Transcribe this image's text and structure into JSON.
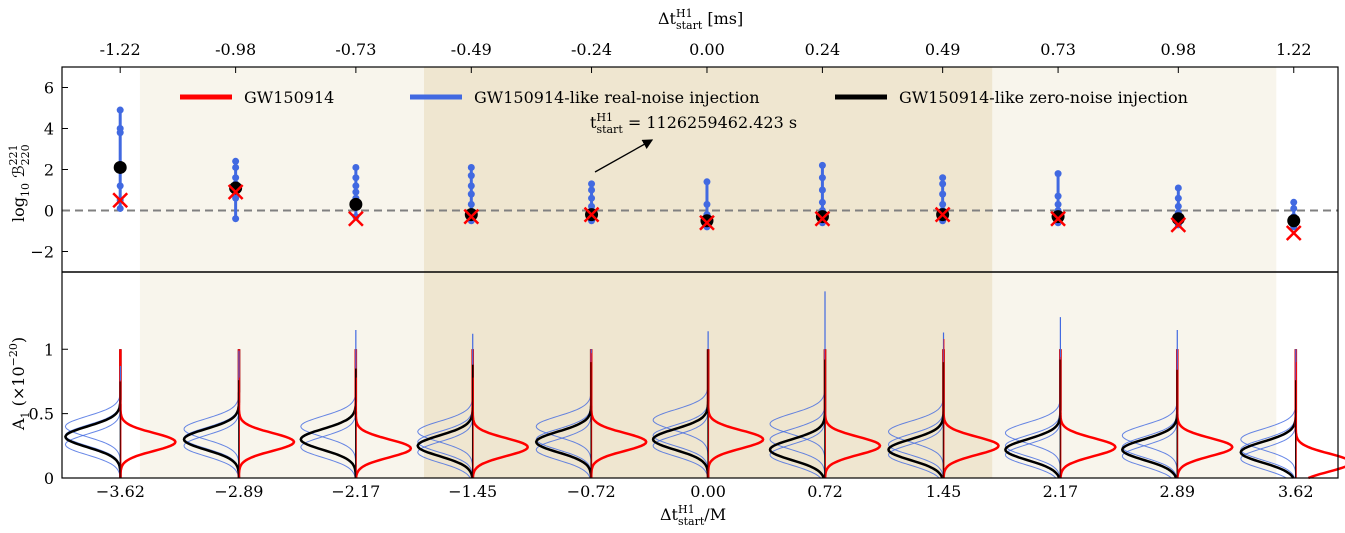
{
  "chart_data": [
    {
      "type": "errorbar",
      "x_label": [
        "Δt",
        "H1",
        "start",
        " [ms]"
      ],
      "y_label": [
        "log",
        "10",
        " ℬ",
        "221",
        "220"
      ],
      "x": [
        -1.22,
        -0.98,
        -0.73,
        -0.49,
        -0.24,
        0,
        0.24,
        0.49,
        0.73,
        0.98,
        1.22
      ],
      "xlim": [
        -1.341,
        1.312
      ],
      "xticks": [
        -1.22,
        -0.98,
        -0.73,
        -0.49,
        -0.24,
        {
          "value": 0,
          "label": "0.00"
        },
        0.24,
        0.49,
        0.73,
        0.98,
        1.22
      ],
      "ylim": [
        -3,
        7
      ],
      "yticks": [
        {
          "value": -2,
          "label": "−2"
        },
        0,
        2,
        4,
        6
      ],
      "hline": 0,
      "annotation": [
        "t",
        "H1",
        "start",
        " = 1126259462.423 s"
      ],
      "series": [
        {
          "name": "GW150914",
          "color": "#ff0000",
          "marker": "x",
          "values": [
            0.5,
            0.9,
            -0.4,
            -0.3,
            -0.2,
            -0.6,
            -0.4,
            -0.2,
            -0.4,
            -0.7,
            -1.1
          ]
        },
        {
          "name": "GW150914-like real-noise injection",
          "color": "#4169e1",
          "marker": "errorbar",
          "values": [
            [
              0.1,
              0.5,
              1.2,
              2.2,
              3.8,
              4.0,
              4.9
            ],
            [
              -0.4,
              0.6,
              1.0,
              1.3,
              1.6,
              2.1,
              2.4
            ],
            [
              -0.3,
              0.2,
              0.6,
              0.9,
              1.2,
              1.6,
              2.1
            ],
            [
              -0.5,
              -0.2,
              0.3,
              0.8,
              1.2,
              1.7,
              2.1
            ],
            [
              -0.5,
              -0.2,
              0.0,
              0.2,
              0.6,
              1.0,
              1.3
            ],
            [
              -0.8,
              -0.6,
              -0.4,
              -0.2,
              0.3,
              1.4
            ],
            [
              -0.6,
              -0.3,
              0.0,
              0.4,
              1.0,
              1.6,
              2.2
            ],
            [
              -0.5,
              -0.3,
              0.0,
              0.3,
              0.8,
              1.3,
              1.6
            ],
            [
              -0.6,
              -0.3,
              0.0,
              0.3,
              0.7,
              1.8
            ],
            [
              -0.7,
              -0.4,
              -0.1,
              0.2,
              0.6,
              1.1
            ],
            [
              -0.8,
              -0.5,
              -0.3,
              0.1,
              0.4
            ]
          ]
        },
        {
          "name": "GW150914-like zero-noise injection",
          "color": "#000000",
          "marker": "dot",
          "values": [
            2.1,
            1.1,
            0.3,
            -0.2,
            -0.2,
            -0.5,
            -0.3,
            -0.2,
            -0.3,
            -0.4,
            -0.5
          ]
        }
      ]
    },
    {
      "type": "violin",
      "x_label": [
        "Δt",
        "H1",
        "start",
        "/M"
      ],
      "y_label": [
        "A",
        "1",
        " (×10",
        "−20",
        ")"
      ],
      "x": [
        -3.62,
        -2.89,
        -2.17,
        -1.45,
        -0.72,
        0,
        0.72,
        1.45,
        2.17,
        2.89,
        3.62
      ],
      "xlim": [
        -3.98,
        3.88
      ],
      "xticks": [
        {
          "value": -3.62,
          "label": "−3.62"
        },
        {
          "value": -2.89,
          "label": "−2.89"
        },
        {
          "value": -2.17,
          "label": "−2.17"
        },
        {
          "value": -1.45,
          "label": "−1.45"
        },
        {
          "value": -0.72,
          "label": "−0.72"
        },
        {
          "value": 0,
          "label": "0.00"
        },
        0.72,
        1.45,
        2.17,
        2.89,
        3.62
      ],
      "ylim": [
        0,
        1.6
      ],
      "yticks": [
        0,
        0.5,
        1
      ],
      "shaded_regions": [
        [
          -3.5,
          3.5
        ],
        [
          -1.75,
          1.75
        ]
      ],
      "shade_colors": [
        "#f8f5ec",
        "#efe6d0"
      ],
      "series": [
        {
          "color": "#ff0000",
          "side": "right",
          "sigma": 0.07,
          "mode": [
            0.28,
            0.28,
            0.23,
            0.24,
            0.28,
            0.3,
            0.25,
            0.25,
            0.24,
            0.24,
            0.12
          ],
          "top": [
            0.76,
            0.78,
            0.78,
            0.78,
            0.97,
            1.0,
            1.0,
            1.08,
            0.94,
            0.84,
            0.9
          ]
        },
        {
          "color": "#4169e1",
          "side": "left",
          "sigma": 0.08,
          "mode": [
            [
              0.26,
              0.33,
              0.4
            ],
            [
              0.25,
              0.31,
              0.38
            ],
            [
              0.24,
              0.3,
              0.4
            ],
            [
              0.2,
              0.28,
              0.36
            ],
            [
              0.22,
              0.3,
              0.4
            ],
            [
              0.25,
              0.33,
              0.45
            ],
            [
              0.18,
              0.3,
              0.42
            ],
            [
              0.18,
              0.26,
              0.36
            ],
            [
              0.18,
              0.25,
              0.35
            ],
            [
              0.17,
              0.24,
              0.33
            ],
            [
              0.15,
              0.22,
              0.3
            ]
          ],
          "top": [
            0.87,
            0.99,
            1.15,
            1.12,
            1.0,
            1.14,
            1.45,
            1.13,
            1.25,
            1.15,
            1.0
          ]
        },
        {
          "color": "#000000",
          "side": "left",
          "sigma": 0.08,
          "mode": [
            0.32,
            0.3,
            0.3,
            0.25,
            0.28,
            0.3,
            0.22,
            0.22,
            0.22,
            0.22,
            0.2
          ],
          "top": [
            0.75,
            0.76,
            0.85,
            0.88,
            0.9,
            1.0,
            0.92,
            0.9,
            0.92,
            0.84,
            0.76
          ]
        }
      ]
    }
  ]
}
